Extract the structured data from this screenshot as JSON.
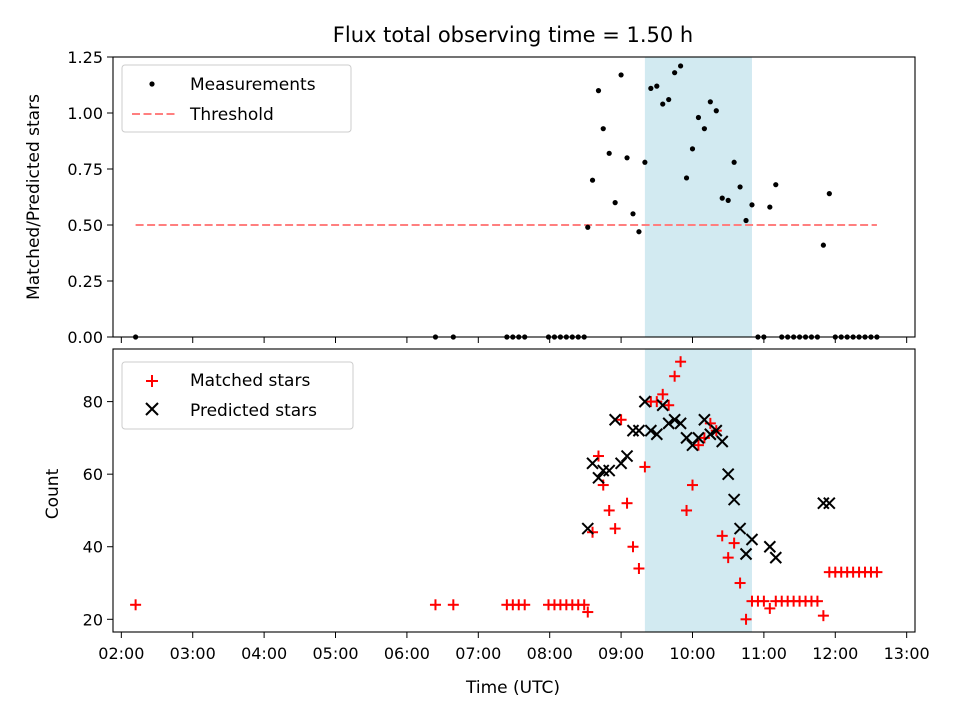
{
  "colors": {
    "measurement": "#000000",
    "threshold": "#ff7f7f",
    "matched": "#ff0000",
    "predicted": "#000000",
    "observing_window": "#add8e6"
  },
  "chart_data": [
    {
      "type": "scatter",
      "title": "Flux total observing time = 1.50 h",
      "xlabel": "",
      "ylabel": "Matched/Predicted stars",
      "xlim": [
        "01:53",
        "13:07"
      ],
      "ylim": [
        0.0,
        1.25
      ],
      "y_ticks": [
        "0.00",
        "0.25",
        "0.50",
        "0.75",
        "1.00",
        "1.25"
      ],
      "x_ticks_labeled": false,
      "grid": false,
      "legend_position": "top-left",
      "observing_window": [
        "09:20",
        "10:50"
      ],
      "series": [
        {
          "name": "Measurements",
          "marker": "dot",
          "x": [
            "02:12",
            "06:24",
            "06:39",
            "07:24",
            "07:29",
            "07:34",
            "07:39",
            "07:59",
            "08:04",
            "08:09",
            "08:14",
            "08:19",
            "08:24",
            "08:29",
            "08:32",
            "08:36",
            "08:41",
            "08:45",
            "08:50",
            "08:55",
            "09:00",
            "09:05",
            "09:10",
            "09:15",
            "09:20",
            "09:25",
            "09:30",
            "09:35",
            "09:40",
            "09:45",
            "09:50",
            "09:55",
            "10:00",
            "10:05",
            "10:10",
            "10:15",
            "10:20",
            "10:25",
            "10:30",
            "10:35",
            "10:40",
            "10:45",
            "10:50",
            "10:55",
            "11:00",
            "11:05",
            "11:10",
            "11:15",
            "11:20",
            "11:25",
            "11:30",
            "11:35",
            "11:40",
            "11:45",
            "11:50",
            "11:55",
            "12:00",
            "12:05",
            "12:10",
            "12:15",
            "12:20",
            "12:25",
            "12:30",
            "12:35"
          ],
          "y": [
            0,
            0,
            0,
            0,
            0,
            0,
            0,
            0,
            0,
            0,
            0,
            0,
            0,
            0,
            0.49,
            0.7,
            1.1,
            0.93,
            0.82,
            0.6,
            1.17,
            0.8,
            0.55,
            0.47,
            0.78,
            1.11,
            1.12,
            1.04,
            1.06,
            1.18,
            1.21,
            0.71,
            0.84,
            0.98,
            0.93,
            1.05,
            1.01,
            0.62,
            0.61,
            0.78,
            0.67,
            0.52,
            0.59,
            0,
            0,
            0.58,
            0.68,
            0,
            0,
            0,
            0,
            0,
            0,
            0,
            0.41,
            0.64,
            0,
            0,
            0,
            0,
            0,
            0,
            0,
            0
          ]
        },
        {
          "name": "Threshold",
          "style": "dashed",
          "x": [
            "02:12",
            "12:35"
          ],
          "y": [
            0.5,
            0.5
          ]
        }
      ]
    },
    {
      "type": "scatter",
      "title": "",
      "xlabel": "Time (UTC)",
      "ylabel": "Count",
      "xlim": [
        "01:53",
        "13:07"
      ],
      "ylim": [
        16.5,
        94.5
      ],
      "y_ticks": [
        "20",
        "40",
        "60",
        "80"
      ],
      "x_ticks": [
        "02:00",
        "03:00",
        "04:00",
        "05:00",
        "06:00",
        "07:00",
        "08:00",
        "09:00",
        "10:00",
        "11:00",
        "12:00",
        "13:00"
      ],
      "grid": false,
      "legend_position": "top-left",
      "observing_window": [
        "09:20",
        "10:50"
      ],
      "series": [
        {
          "name": "Matched stars",
          "marker": "plus",
          "x": [
            "02:12",
            "06:24",
            "06:39",
            "07:24",
            "07:29",
            "07:34",
            "07:39",
            "07:59",
            "08:04",
            "08:09",
            "08:14",
            "08:19",
            "08:24",
            "08:29",
            "08:32",
            "08:36",
            "08:41",
            "08:45",
            "08:50",
            "08:55",
            "09:00",
            "09:05",
            "09:10",
            "09:15",
            "09:20",
            "09:25",
            "09:30",
            "09:35",
            "09:40",
            "09:45",
            "09:50",
            "09:55",
            "10:00",
            "10:05",
            "10:10",
            "10:15",
            "10:20",
            "10:25",
            "10:30",
            "10:35",
            "10:40",
            "10:45",
            "10:50",
            "10:55",
            "11:00",
            "11:05",
            "11:10",
            "11:15",
            "11:20",
            "11:25",
            "11:30",
            "11:35",
            "11:40",
            "11:45",
            "11:50",
            "11:55",
            "12:00",
            "12:05",
            "12:10",
            "12:15",
            "12:20",
            "12:25",
            "12:30",
            "12:35"
          ],
          "y": [
            24,
            24,
            24,
            24,
            24,
            24,
            24,
            24,
            24,
            24,
            24,
            24,
            24,
            24,
            22,
            44,
            65,
            57,
            50,
            45,
            75,
            52,
            40,
            34,
            62,
            80,
            80,
            82,
            79,
            87,
            91,
            50,
            57,
            68,
            70,
            74,
            72,
            43,
            37,
            41,
            30,
            20,
            25,
            25,
            25,
            23,
            25,
            25,
            25,
            25,
            25,
            25,
            25,
            25,
            21,
            33,
            33,
            33,
            33,
            33,
            33,
            33,
            33,
            33
          ]
        },
        {
          "name": "Predicted stars",
          "marker": "x",
          "x": [
            "08:32",
            "08:36",
            "08:41",
            "08:45",
            "08:50",
            "08:55",
            "09:00",
            "09:05",
            "09:10",
            "09:15",
            "09:20",
            "09:25",
            "09:30",
            "09:35",
            "09:40",
            "09:45",
            "09:50",
            "09:55",
            "10:00",
            "10:05",
            "10:10",
            "10:15",
            "10:20",
            "10:25",
            "10:30",
            "10:35",
            "10:40",
            "10:45",
            "10:50",
            "11:05",
            "11:10",
            "11:50",
            "11:55"
          ],
          "y": [
            45,
            63,
            59,
            61,
            61,
            75,
            63,
            65,
            72,
            72,
            80,
            72,
            71,
            79,
            74,
            75,
            74,
            70,
            68,
            70,
            75,
            71,
            72,
            69,
            60,
            53,
            45,
            38,
            42,
            40,
            37,
            52,
            52
          ]
        }
      ]
    }
  ]
}
